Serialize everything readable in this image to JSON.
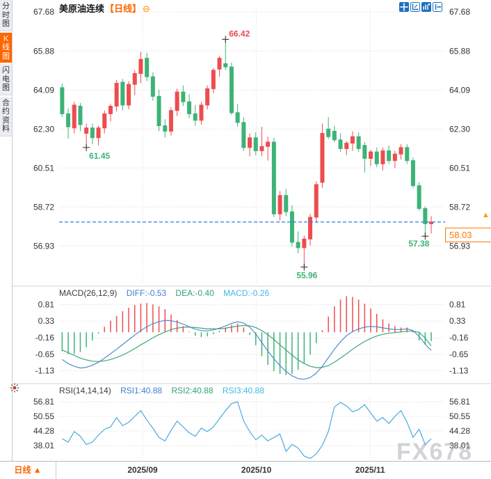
{
  "app": {
    "watermark": "FX678"
  },
  "sidebar": {
    "active": "K线图",
    "tabs": [
      {
        "label": "分时图"
      },
      {
        "label": "K线图"
      },
      {
        "label": "闪电图"
      },
      {
        "label": "合约资料"
      }
    ]
  },
  "header": {
    "title": "美原油连续",
    "period_tag": "【日线】"
  },
  "icons": {
    "collapse": "⊖",
    "up_triangle": "▲"
  },
  "toolbar": {
    "icons": [
      "pan-crosshair-icon",
      "fit-scale-icon",
      "price-scale-icon",
      "jump-to-latest-icon"
    ]
  },
  "bottom_bar": {
    "period_label": "日线"
  },
  "price_tag": {
    "value": "58.03"
  },
  "chart_data": {
    "type": "candlestick-with-indicators",
    "symbol": "美原油连续",
    "interval": "日线",
    "last_price": 58.03,
    "price_ticks": [
      67.68,
      65.88,
      64.09,
      62.3,
      60.51,
      58.72,
      56.93
    ],
    "x_months": [
      {
        "label": "2025/09",
        "index": 13.3
      },
      {
        "label": "2025/10",
        "index": 32.1
      },
      {
        "label": "2025/11",
        "index": 50.9
      }
    ],
    "candles": [
      [
        64.2,
        64.38,
        62.85,
        63.0
      ],
      [
        63.0,
        63.25,
        61.85,
        62.4
      ],
      [
        62.35,
        63.55,
        62.1,
        63.4
      ],
      [
        63.35,
        63.5,
        62.2,
        62.5
      ],
      [
        62.1,
        62.55,
        61.45,
        62.35
      ],
      [
        62.35,
        62.55,
        61.6,
        61.9
      ],
      [
        61.9,
        62.45,
        61.55,
        62.35
      ],
      [
        62.35,
        63.15,
        62.1,
        63.0
      ],
      [
        63.0,
        63.45,
        62.65,
        63.35
      ],
      [
        63.35,
        64.55,
        63.1,
        64.4
      ],
      [
        64.45,
        64.6,
        63.15,
        63.4
      ],
      [
        63.4,
        64.5,
        63.2,
        64.35
      ],
      [
        64.35,
        65.0,
        63.85,
        64.85
      ],
      [
        64.85,
        65.85,
        64.4,
        65.5
      ],
      [
        65.55,
        65.8,
        64.5,
        64.7
      ],
      [
        64.7,
        64.9,
        63.6,
        63.8
      ],
      [
        63.8,
        64.1,
        62.2,
        62.45
      ],
      [
        62.45,
        62.75,
        61.9,
        62.2
      ],
      [
        62.2,
        63.3,
        62.0,
        63.15
      ],
      [
        63.15,
        64.15,
        62.9,
        64.0
      ],
      [
        64.0,
        64.3,
        63.35,
        63.55
      ],
      [
        63.55,
        63.9,
        62.8,
        63.0
      ],
      [
        63.0,
        63.4,
        62.45,
        62.7
      ],
      [
        62.7,
        63.55,
        62.5,
        63.4
      ],
      [
        63.4,
        64.3,
        63.2,
        64.15
      ],
      [
        64.15,
        65.1,
        63.95,
        65.0
      ],
      [
        65.05,
        65.65,
        64.7,
        65.55
      ],
      [
        65.3,
        66.42,
        65.0,
        65.15
      ],
      [
        65.15,
        65.35,
        62.95,
        63.05
      ],
      [
        63.05,
        63.45,
        62.4,
        62.6
      ],
      [
        62.6,
        62.85,
        61.3,
        61.45
      ],
      [
        61.45,
        62.1,
        61.05,
        61.9
      ],
      [
        61.9,
        62.15,
        61.1,
        61.3
      ],
      [
        61.3,
        62.4,
        61.05,
        61.5
      ],
      [
        61.5,
        61.95,
        60.85,
        61.7
      ],
      [
        61.7,
        61.9,
        58.25,
        58.4
      ],
      [
        58.4,
        59.45,
        58.1,
        59.25
      ],
      [
        59.25,
        59.55,
        58.3,
        58.5
      ],
      [
        58.5,
        58.8,
        56.9,
        57.1
      ],
      [
        57.1,
        57.6,
        56.6,
        56.85
      ],
      [
        56.85,
        57.4,
        55.96,
        57.25
      ],
      [
        57.25,
        58.4,
        56.95,
        58.25
      ],
      [
        58.25,
        59.9,
        58.0,
        59.75
      ],
      [
        59.85,
        62.55,
        59.6,
        62.1
      ],
      [
        62.3,
        62.85,
        61.85,
        61.95
      ],
      [
        62.2,
        62.45,
        61.7,
        61.8
      ],
      [
        61.8,
        62.1,
        61.25,
        61.4
      ],
      [
        61.4,
        61.75,
        61.1,
        61.65
      ],
      [
        61.65,
        62.2,
        61.3,
        61.95
      ],
      [
        61.95,
        62.15,
        61.25,
        61.4
      ],
      [
        61.55,
        61.7,
        60.3,
        60.95
      ],
      [
        60.95,
        61.35,
        60.6,
        61.25
      ],
      [
        61.25,
        61.45,
        60.55,
        60.7
      ],
      [
        60.7,
        61.45,
        60.4,
        61.3
      ],
      [
        61.3,
        61.55,
        60.7,
        60.85
      ],
      [
        60.85,
        61.3,
        60.5,
        61.15
      ],
      [
        61.15,
        61.6,
        60.9,
        61.45
      ],
      [
        61.45,
        61.6,
        60.7,
        60.85
      ],
      [
        60.85,
        61.0,
        59.6,
        59.7
      ],
      [
        59.7,
        59.85,
        58.55,
        58.65
      ],
      [
        58.65,
        58.75,
        57.38,
        57.95
      ],
      [
        57.95,
        58.3,
        57.5,
        58.03
      ]
    ],
    "annotations": [
      {
        "index": 27,
        "price": 66.42,
        "label": "66.42",
        "type": "high",
        "placement": "above-right"
      },
      {
        "index": 4,
        "price": 61.45,
        "label": "61.45",
        "type": "low",
        "placement": "below-right"
      },
      {
        "index": 40,
        "price": 55.96,
        "label": "55.96",
        "type": "low",
        "placement": "below"
      },
      {
        "index": 60,
        "price": 57.38,
        "label": "57.38",
        "type": "low",
        "placement": "below-left"
      }
    ],
    "macd": {
      "title": "MACD(26,12,9)",
      "diff_label": "DIFF:-0.53",
      "dea_label": "DEA:-0.40",
      "macd_label": "MACD:-0.26",
      "ticks": [
        0.81,
        0.33,
        -0.16,
        -0.65,
        -1.13
      ],
      "diff": [
        -0.8,
        -0.92,
        -1.0,
        -1.05,
        -1.03,
        -0.97,
        -0.88,
        -0.76,
        -0.63,
        -0.5,
        -0.36,
        -0.22,
        -0.08,
        0.05,
        0.16,
        0.25,
        0.31,
        0.35,
        0.34,
        0.3,
        0.24,
        0.16,
        0.09,
        0.05,
        0.04,
        0.07,
        0.12,
        0.19,
        0.26,
        0.31,
        0.27,
        0.15,
        -0.05,
        -0.3,
        -0.55,
        -0.78,
        -0.98,
        -1.15,
        -1.28,
        -1.36,
        -1.38,
        -1.33,
        -1.2,
        -1.0,
        -0.75,
        -0.5,
        -0.28,
        -0.1,
        0.02,
        0.1,
        0.15,
        0.17,
        0.16,
        0.13,
        0.1,
        0.08,
        0.08,
        0.1,
        0.05,
        -0.12,
        -0.35,
        -0.53
      ],
      "dea": [
        -0.52,
        -0.6,
        -0.68,
        -0.76,
        -0.81,
        -0.85,
        -0.86,
        -0.84,
        -0.8,
        -0.74,
        -0.67,
        -0.58,
        -0.48,
        -0.37,
        -0.27,
        -0.16,
        -0.07,
        0.01,
        0.08,
        0.12,
        0.15,
        0.15,
        0.14,
        0.12,
        0.1,
        0.1,
        0.1,
        0.12,
        0.15,
        0.18,
        0.2,
        0.19,
        0.14,
        0.05,
        -0.07,
        -0.21,
        -0.37,
        -0.52,
        -0.67,
        -0.81,
        -0.92,
        -1.0,
        -1.04,
        -1.03,
        -0.98,
        -0.88,
        -0.76,
        -0.63,
        -0.5,
        -0.38,
        -0.27,
        -0.18,
        -0.11,
        -0.06,
        -0.03,
        -0.01,
        0.01,
        0.03,
        0.03,
        0.0,
        -0.17,
        -0.4
      ]
    },
    "rsi": {
      "title": "RSI(14,14,14)",
      "rsi1_label": "RSI1:40.88",
      "rsi2_label": "RSI2:40.88",
      "rsi3_label": "RSI3:40.88",
      "ticks": [
        56.81,
        50.55,
        44.28,
        38.01
      ],
      "values": [
        41.0,
        39.5,
        44.0,
        42.0,
        38.5,
        39.5,
        42.5,
        45.0,
        46.0,
        50.0,
        46.5,
        48.0,
        50.5,
        53.0,
        49.0,
        45.5,
        41.5,
        40.0,
        44.5,
        48.5,
        46.0,
        43.5,
        42.0,
        45.5,
        44.0,
        46.0,
        49.5,
        53.0,
        56.0,
        56.8,
        48.5,
        44.0,
        40.5,
        42.5,
        40.0,
        41.5,
        43.0,
        35.5,
        38.5,
        37.0,
        33.5,
        32.5,
        34.5,
        38.0,
        44.0,
        54.5,
        56.5,
        55.0,
        52.5,
        53.5,
        55.5,
        52.0,
        48.5,
        50.0,
        47.5,
        50.5,
        53.0,
        48.0,
        41.5,
        45.0,
        38.5,
        40.9
      ]
    },
    "colors": {
      "up": "#ee4c4e",
      "down": "#3db377",
      "diff_line": "#4f8ad2",
      "dea_line": "#3aa873",
      "rsi_line": "#4aa9de",
      "dashed_price_line": "#2a7de1",
      "accent_orange": "#ff6600",
      "annotation_high": "#e84a52",
      "annotation_low": "#3db377",
      "grid": "#dadade"
    }
  }
}
